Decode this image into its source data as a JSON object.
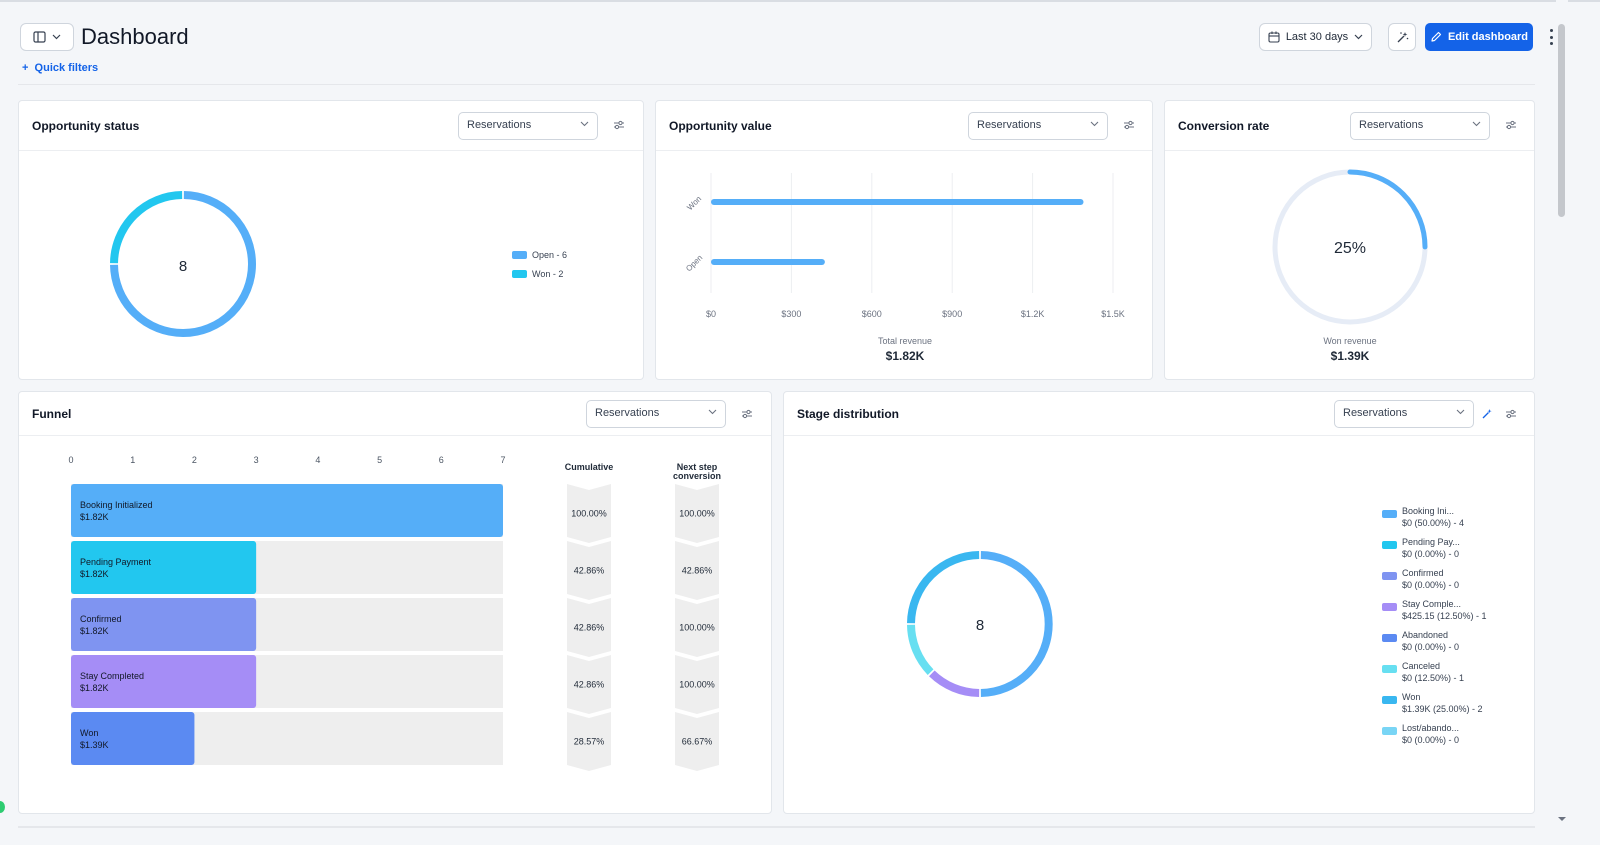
{
  "header": {
    "title": "Dashboard",
    "date_range": "Last 30 days",
    "edit_label": "Edit dashboard",
    "quick_filters": "Quick filters"
  },
  "colors": {
    "accent": "#1463e8",
    "open": "#55aef8",
    "won": "#22c7ef",
    "confirmed": "#7f94f1",
    "stay": "#a58df6",
    "abandoned": "#5b8af2",
    "canceled": "#67dff1",
    "won_stage": "#39b7f0",
    "lost": "#79d5f5"
  },
  "opportunity_status": {
    "title": "Opportunity status",
    "select": "Reservations",
    "total": "8",
    "legend": [
      {
        "label": "Open - 6",
        "color": "#55aef8"
      },
      {
        "label": "Won - 2",
        "color": "#22c7ef"
      }
    ],
    "chart_data": {
      "type": "pie",
      "categories": [
        "Open",
        "Won"
      ],
      "values": [
        6,
        2
      ]
    }
  },
  "opportunity_value": {
    "title": "Opportunity value",
    "select": "Reservations",
    "total_label": "Total revenue",
    "total_value": "$1.82K",
    "chart_data": {
      "type": "bar",
      "orientation": "horizontal",
      "categories": [
        "Won",
        "Open"
      ],
      "values": [
        1390,
        425
      ],
      "xlim": [
        0,
        1500
      ],
      "xticks": [
        "$0",
        "$300",
        "$600",
        "$900",
        "$1.2K",
        "$1.5K"
      ],
      "grid": true
    }
  },
  "conversion_rate": {
    "title": "Conversion rate",
    "select": "Reservations",
    "value": "25%",
    "fraction": 0.25,
    "sub_label": "Won revenue",
    "sub_value": "$1.39K"
  },
  "funnel": {
    "title": "Funnel",
    "select": "Reservations",
    "col_cumulative": "Cumulative",
    "col_next_line1": "Next step",
    "col_next_line2": "conversion",
    "axis_ticks": [
      "0",
      "1",
      "2",
      "3",
      "4",
      "5",
      "6",
      "7"
    ],
    "chart_data": {
      "type": "bar",
      "orientation": "horizontal",
      "xlim": [
        0,
        7
      ],
      "stages": [
        {
          "name": "Booking Initialized",
          "amount": "$1.82K",
          "value": 7,
          "color": "#55aef8",
          "cumulative": "100.00%",
          "next": "100.00%"
        },
        {
          "name": "Pending Payment",
          "amount": "$1.82K",
          "value": 3,
          "color": "#22c7ef",
          "cumulative": "42.86%",
          "next": "42.86%"
        },
        {
          "name": "Confirmed",
          "amount": "$1.82K",
          "value": 3,
          "color": "#7f94f1",
          "cumulative": "42.86%",
          "next": "100.00%"
        },
        {
          "name": "Stay Completed",
          "amount": "$1.82K",
          "value": 3,
          "color": "#a58df6",
          "cumulative": "42.86%",
          "next": "100.00%"
        },
        {
          "name": "Won",
          "amount": "$1.39K",
          "value": 2,
          "color": "#5b8af2",
          "cumulative": "28.57%",
          "next": "66.67%"
        }
      ]
    }
  },
  "stage_distribution": {
    "title": "Stage distribution",
    "select": "Reservations",
    "total": "8",
    "legend": [
      {
        "name": "Booking Ini...",
        "detail": "$0 (50.00%) - 4",
        "color": "#55aef8"
      },
      {
        "name": "Pending Pay...",
        "detail": "$0 (0.00%) - 0",
        "color": "#22c7ef"
      },
      {
        "name": "Confirmed",
        "detail": "$0 (0.00%) - 0",
        "color": "#7f94f1"
      },
      {
        "name": "Stay Comple...",
        "detail": "$425.15 (12.50%) - 1",
        "color": "#a58df6"
      },
      {
        "name": "Abandoned",
        "detail": "$0 (0.00%) - 0",
        "color": "#5b8af2"
      },
      {
        "name": "Canceled",
        "detail": "$0 (12.50%) - 1",
        "color": "#67dff1"
      },
      {
        "name": "Won",
        "detail": "$1.39K (25.00%) - 2",
        "color": "#39b7f0"
      },
      {
        "name": "Lost/abando...",
        "detail": "$0 (0.00%) - 0",
        "color": "#79d5f5"
      }
    ],
    "chart_data": {
      "type": "pie",
      "categories": [
        "Booking Initialized",
        "Stay Completed",
        "Canceled",
        "Won"
      ],
      "values": [
        4,
        1,
        1,
        2
      ]
    }
  }
}
